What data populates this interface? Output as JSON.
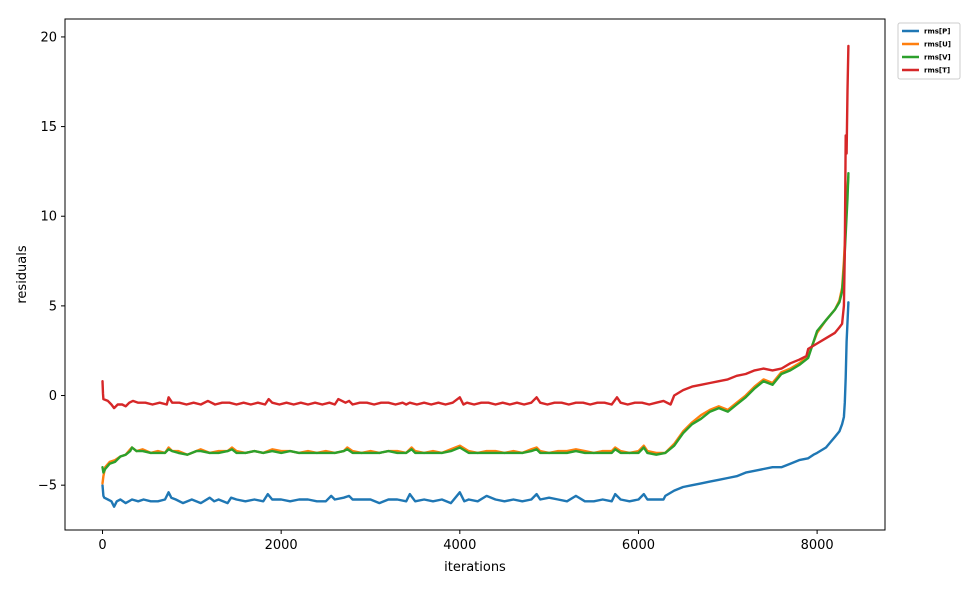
{
  "chart_data": {
    "type": "line",
    "xlabel": "iterations",
    "ylabel": "residuals",
    "xlim": [
      -420,
      8760
    ],
    "ylim": [
      -7.5,
      21
    ],
    "xticks": [
      0,
      2000,
      4000,
      6000,
      8000
    ],
    "yticks": [
      -5,
      0,
      5,
      10,
      15,
      20
    ],
    "grid": false,
    "legend_position": "outside-top-right",
    "series": [
      {
        "name": "rms[P]",
        "color": "#1f77b4",
        "x": [
          0,
          10,
          20,
          60,
          100,
          130,
          160,
          200,
          260,
          330,
          400,
          460,
          540,
          620,
          700,
          740,
          770,
          820,
          900,
          1000,
          1100,
          1200,
          1250,
          1300,
          1400,
          1440,
          1500,
          1600,
          1700,
          1800,
          1850,
          1900,
          2000,
          2100,
          2200,
          2300,
          2400,
          2500,
          2560,
          2600,
          2700,
          2760,
          2800,
          2900,
          3000,
          3100,
          3200,
          3300,
          3400,
          3440,
          3500,
          3600,
          3700,
          3800,
          3900,
          4000,
          4050,
          4100,
          4200,
          4300,
          4400,
          4500,
          4600,
          4700,
          4800,
          4860,
          4900,
          5000,
          5100,
          5200,
          5300,
          5400,
          5500,
          5600,
          5700,
          5740,
          5800,
          5900,
          6000,
          6060,
          6100,
          6200,
          6280,
          6300,
          6400,
          6500,
          6600,
          6700,
          6800,
          6900,
          7000,
          7100,
          7200,
          7300,
          7400,
          7500,
          7600,
          7700,
          7800,
          7900,
          7960,
          8000,
          8100,
          8150,
          8200,
          8250,
          8280,
          8300,
          8310,
          8320,
          8330,
          8350
        ],
        "y": [
          -5.0,
          -5.6,
          -5.7,
          -5.8,
          -5.9,
          -6.2,
          -5.9,
          -5.8,
          -6.0,
          -5.8,
          -5.9,
          -5.8,
          -5.9,
          -5.9,
          -5.8,
          -5.4,
          -5.7,
          -5.8,
          -6.0,
          -5.8,
          -6.0,
          -5.7,
          -5.9,
          -5.8,
          -6.0,
          -5.7,
          -5.8,
          -5.9,
          -5.8,
          -5.9,
          -5.5,
          -5.8,
          -5.8,
          -5.9,
          -5.8,
          -5.8,
          -5.9,
          -5.9,
          -5.6,
          -5.8,
          -5.7,
          -5.6,
          -5.8,
          -5.8,
          -5.8,
          -6.0,
          -5.8,
          -5.8,
          -5.9,
          -5.5,
          -5.9,
          -5.8,
          -5.9,
          -5.8,
          -6.0,
          -5.4,
          -5.9,
          -5.8,
          -5.9,
          -5.6,
          -5.8,
          -5.9,
          -5.8,
          -5.9,
          -5.8,
          -5.5,
          -5.8,
          -5.7,
          -5.8,
          -5.9,
          -5.6,
          -5.9,
          -5.9,
          -5.8,
          -5.9,
          -5.5,
          -5.8,
          -5.9,
          -5.8,
          -5.5,
          -5.8,
          -5.8,
          -5.8,
          -5.6,
          -5.3,
          -5.1,
          -5.0,
          -4.9,
          -4.8,
          -4.7,
          -4.6,
          -4.5,
          -4.3,
          -4.2,
          -4.1,
          -4.0,
          -4.0,
          -3.8,
          -3.6,
          -3.5,
          -3.3,
          -3.2,
          -2.9,
          -2.6,
          -2.3,
          -2.0,
          -1.6,
          -1.2,
          -0.4,
          1.0,
          3.0,
          5.2
        ]
      },
      {
        "name": "rms[U]",
        "color": "#ff7f0e",
        "x": [
          0,
          10,
          30,
          80,
          140,
          200,
          260,
          310,
          330,
          380,
          450,
          540,
          620,
          700,
          740,
          780,
          850,
          950,
          1050,
          1100,
          1200,
          1300,
          1400,
          1450,
          1500,
          1600,
          1700,
          1800,
          1900,
          2000,
          2100,
          2200,
          2300,
          2400,
          2500,
          2600,
          2700,
          2740,
          2800,
          2900,
          3000,
          3100,
          3200,
          3300,
          3400,
          3460,
          3500,
          3600,
          3700,
          3800,
          3900,
          4000,
          4100,
          4200,
          4300,
          4400,
          4500,
          4600,
          4700,
          4800,
          4860,
          4900,
          5000,
          5100,
          5200,
          5300,
          5400,
          5500,
          5600,
          5700,
          5740,
          5800,
          5900,
          6000,
          6060,
          6100,
          6200,
          6300,
          6400,
          6500,
          6600,
          6700,
          6800,
          6900,
          7000,
          7100,
          7200,
          7300,
          7400,
          7500,
          7600,
          7700,
          7800,
          7900,
          8000,
          8100,
          8200,
          8250,
          8280,
          8300,
          8320,
          8340,
          8350
        ],
        "y": [
          -4.9,
          -4.5,
          -4.0,
          -3.7,
          -3.6,
          -3.4,
          -3.3,
          -3.0,
          -2.9,
          -3.1,
          -3.0,
          -3.2,
          -3.1,
          -3.2,
          -2.9,
          -3.1,
          -3.1,
          -3.3,
          -3.1,
          -3.0,
          -3.2,
          -3.1,
          -3.1,
          -2.9,
          -3.1,
          -3.2,
          -3.1,
          -3.2,
          -3.0,
          -3.1,
          -3.1,
          -3.2,
          -3.1,
          -3.2,
          -3.1,
          -3.2,
          -3.1,
          -2.9,
          -3.1,
          -3.2,
          -3.1,
          -3.2,
          -3.1,
          -3.1,
          -3.2,
          -2.9,
          -3.1,
          -3.2,
          -3.1,
          -3.2,
          -3.0,
          -2.8,
          -3.1,
          -3.2,
          -3.1,
          -3.1,
          -3.2,
          -3.1,
          -3.2,
          -3.0,
          -2.9,
          -3.1,
          -3.2,
          -3.1,
          -3.1,
          -3.0,
          -3.1,
          -3.2,
          -3.1,
          -3.1,
          -2.9,
          -3.1,
          -3.2,
          -3.1,
          -2.8,
          -3.1,
          -3.2,
          -3.2,
          -2.7,
          -2.0,
          -1.5,
          -1.1,
          -0.8,
          -0.6,
          -0.8,
          -0.4,
          0.0,
          0.5,
          0.9,
          0.7,
          1.3,
          1.5,
          1.8,
          2.2,
          3.5,
          4.2,
          4.8,
          5.3,
          6.0,
          7.5,
          9.5,
          11.5,
          12.2
        ]
      },
      {
        "name": "rms[V]",
        "color": "#2ca02c",
        "x": [
          0,
          10,
          30,
          80,
          140,
          200,
          260,
          310,
          330,
          380,
          450,
          540,
          620,
          700,
          740,
          780,
          850,
          950,
          1050,
          1100,
          1200,
          1300,
          1400,
          1450,
          1500,
          1600,
          1700,
          1800,
          1900,
          2000,
          2100,
          2200,
          2300,
          2400,
          2500,
          2600,
          2700,
          2740,
          2800,
          2900,
          3000,
          3100,
          3200,
          3300,
          3400,
          3460,
          3500,
          3600,
          3700,
          3800,
          3900,
          4000,
          4100,
          4200,
          4300,
          4400,
          4500,
          4600,
          4700,
          4800,
          4860,
          4900,
          5000,
          5100,
          5200,
          5300,
          5400,
          5500,
          5600,
          5700,
          5740,
          5800,
          5900,
          6000,
          6060,
          6100,
          6200,
          6300,
          6400,
          6500,
          6600,
          6700,
          6800,
          6900,
          7000,
          7100,
          7200,
          7300,
          7400,
          7500,
          7600,
          7700,
          7800,
          7900,
          8000,
          8100,
          8200,
          8250,
          8280,
          8300,
          8320,
          8340,
          8350
        ],
        "y": [
          -4.0,
          -4.3,
          -4.1,
          -3.8,
          -3.7,
          -3.4,
          -3.3,
          -3.1,
          -2.9,
          -3.1,
          -3.1,
          -3.2,
          -3.2,
          -3.2,
          -3.0,
          -3.1,
          -3.2,
          -3.3,
          -3.1,
          -3.1,
          -3.2,
          -3.2,
          -3.1,
          -3.0,
          -3.2,
          -3.2,
          -3.1,
          -3.2,
          -3.1,
          -3.2,
          -3.1,
          -3.2,
          -3.2,
          -3.2,
          -3.2,
          -3.2,
          -3.1,
          -3.0,
          -3.2,
          -3.2,
          -3.2,
          -3.2,
          -3.1,
          -3.2,
          -3.2,
          -3.0,
          -3.2,
          -3.2,
          -3.2,
          -3.2,
          -3.1,
          -2.9,
          -3.2,
          -3.2,
          -3.2,
          -3.2,
          -3.2,
          -3.2,
          -3.2,
          -3.1,
          -3.0,
          -3.2,
          -3.2,
          -3.2,
          -3.2,
          -3.1,
          -3.2,
          -3.2,
          -3.2,
          -3.2,
          -3.0,
          -3.2,
          -3.2,
          -3.2,
          -2.9,
          -3.2,
          -3.3,
          -3.2,
          -2.8,
          -2.1,
          -1.6,
          -1.3,
          -0.9,
          -0.7,
          -0.9,
          -0.5,
          -0.1,
          0.4,
          0.8,
          0.6,
          1.2,
          1.4,
          1.7,
          2.1,
          3.6,
          4.2,
          4.8,
          5.2,
          5.8,
          7.0,
          9.0,
          11.0,
          12.4
        ]
      },
      {
        "name": "rms[T]",
        "color": "#d62728",
        "x": [
          0,
          5,
          10,
          60,
          100,
          130,
          170,
          220,
          260,
          300,
          340,
          400,
          480,
          560,
          640,
          720,
          740,
          780,
          860,
          940,
          1020,
          1100,
          1180,
          1260,
          1340,
          1420,
          1500,
          1580,
          1660,
          1740,
          1820,
          1860,
          1900,
          1980,
          2060,
          2140,
          2220,
          2300,
          2380,
          2460,
          2540,
          2600,
          2640,
          2720,
          2760,
          2800,
          2880,
          2960,
          3040,
          3120,
          3200,
          3280,
          3360,
          3400,
          3440,
          3520,
          3600,
          3680,
          3760,
          3840,
          3920,
          4000,
          4040,
          4080,
          4160,
          4240,
          4320,
          4400,
          4480,
          4560,
          4640,
          4720,
          4800,
          4860,
          4900,
          4980,
          5060,
          5140,
          5220,
          5300,
          5380,
          5460,
          5540,
          5620,
          5700,
          5760,
          5800,
          5880,
          5960,
          6040,
          6120,
          6200,
          6280,
          6360,
          6400,
          6500,
          6600,
          6700,
          6800,
          6900,
          7000,
          7100,
          7200,
          7300,
          7400,
          7500,
          7600,
          7700,
          7800,
          7880,
          7900,
          8000,
          8100,
          8200,
          8250,
          8280,
          8300,
          8310,
          8320,
          8330,
          8340,
          8350
        ],
        "y": [
          0.8,
          0.1,
          -0.2,
          -0.3,
          -0.5,
          -0.7,
          -0.5,
          -0.5,
          -0.6,
          -0.4,
          -0.3,
          -0.4,
          -0.4,
          -0.5,
          -0.4,
          -0.5,
          -0.1,
          -0.4,
          -0.4,
          -0.5,
          -0.4,
          -0.5,
          -0.3,
          -0.5,
          -0.4,
          -0.4,
          -0.5,
          -0.4,
          -0.5,
          -0.4,
          -0.5,
          -0.2,
          -0.4,
          -0.5,
          -0.4,
          -0.5,
          -0.4,
          -0.5,
          -0.4,
          -0.5,
          -0.4,
          -0.5,
          -0.2,
          -0.4,
          -0.3,
          -0.5,
          -0.4,
          -0.4,
          -0.5,
          -0.4,
          -0.4,
          -0.5,
          -0.4,
          -0.5,
          -0.4,
          -0.5,
          -0.4,
          -0.5,
          -0.4,
          -0.5,
          -0.4,
          -0.1,
          -0.5,
          -0.4,
          -0.5,
          -0.4,
          -0.4,
          -0.5,
          -0.4,
          -0.5,
          -0.4,
          -0.5,
          -0.4,
          -0.1,
          -0.4,
          -0.5,
          -0.4,
          -0.4,
          -0.5,
          -0.4,
          -0.4,
          -0.5,
          -0.4,
          -0.4,
          -0.5,
          -0.1,
          -0.4,
          -0.5,
          -0.4,
          -0.4,
          -0.5,
          -0.4,
          -0.3,
          -0.5,
          0.0,
          0.3,
          0.5,
          0.6,
          0.7,
          0.8,
          0.9,
          1.1,
          1.2,
          1.4,
          1.5,
          1.4,
          1.5,
          1.8,
          2.0,
          2.2,
          2.6,
          2.9,
          3.2,
          3.5,
          3.8,
          4.0,
          5.0,
          8.0,
          14.5,
          13.5,
          17.0,
          19.5
        ]
      }
    ]
  }
}
